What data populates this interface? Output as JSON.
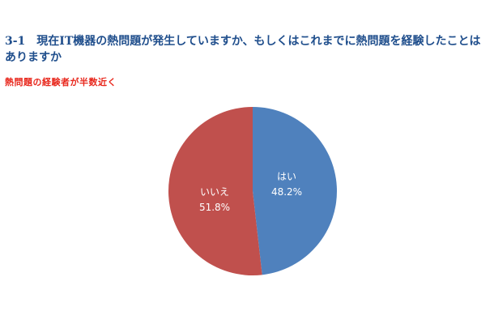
{
  "header": {
    "title": "3-1　現在IT機器の熱問題が発生していますか、もしくはこれまでに熱問題を経験したことはありますか",
    "subtitle": "熱問題の経験者が半数近く"
  },
  "colors": {
    "title": "#1f4e8c",
    "subtitle": "#e8261b"
  },
  "chart_data": {
    "type": "pie",
    "title": "3-1　現在IT機器の熱問題が発生していますか、もしくはこれまでに熱問題を経験したことはありますか",
    "subtitle": "熱問題の経験者が半数近く",
    "start_angle_deg": 0,
    "direction": "clockwise",
    "legend": "none",
    "slices": [
      {
        "label": "はい",
        "value": 48.2,
        "display": "48.2%",
        "color": "#4f81bd"
      },
      {
        "label": "いいえ",
        "value": 51.8,
        "display": "51.8%",
        "color": "#c0504d"
      }
    ]
  }
}
